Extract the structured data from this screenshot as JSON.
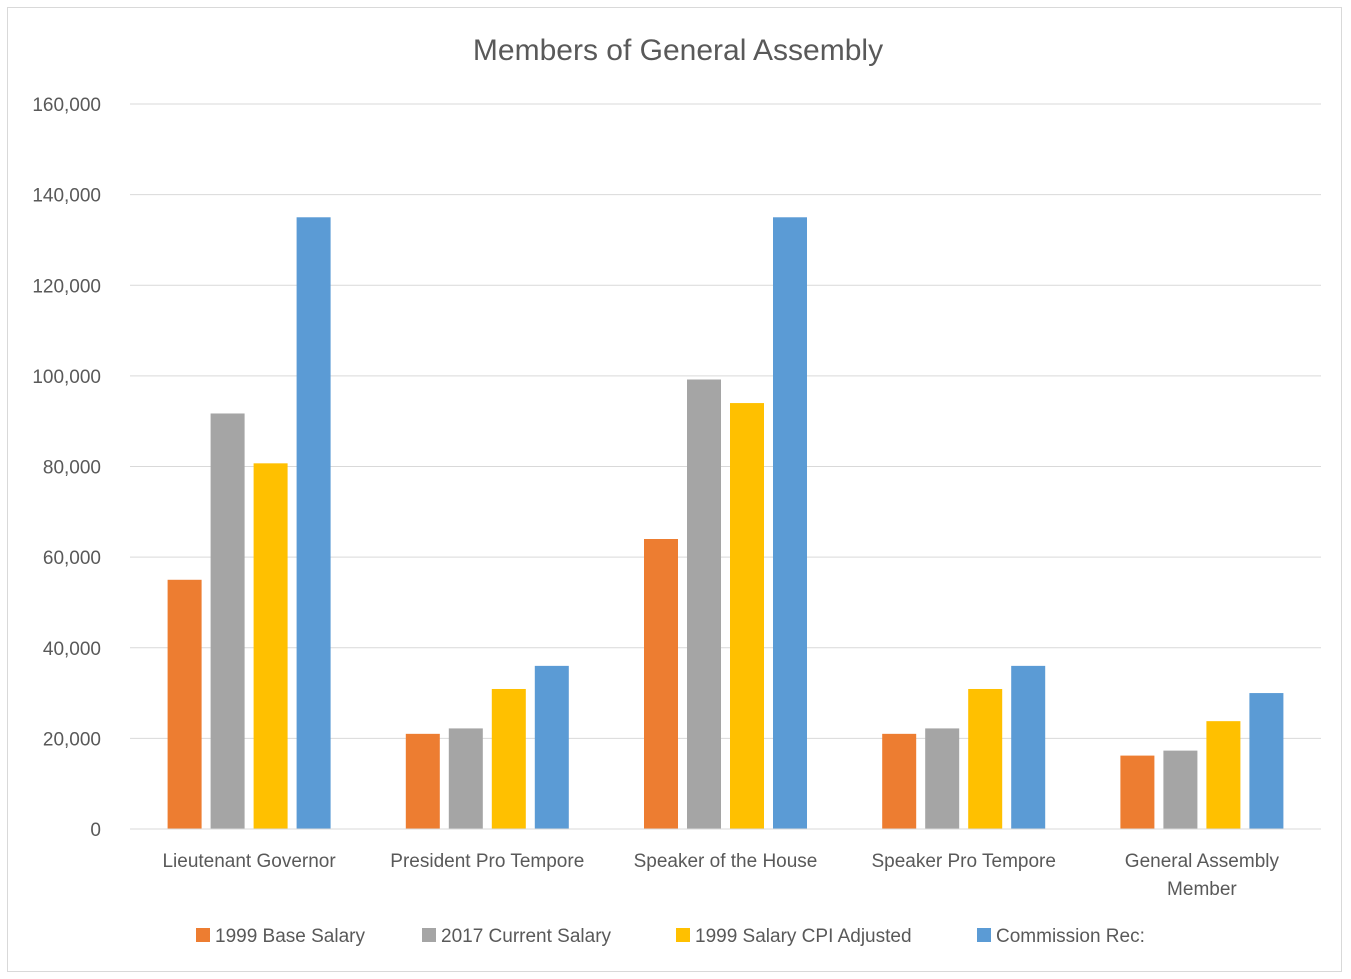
{
  "chart_data": {
    "type": "bar",
    "title": "Members of General Assembly",
    "xlabel": "",
    "ylabel": "",
    "ylim": [
      0,
      160000
    ],
    "yticks": [
      0,
      20000,
      40000,
      60000,
      80000,
      100000,
      120000,
      140000,
      160000
    ],
    "ytick_labels": [
      "0",
      "20,000",
      "40,000",
      "60,000",
      "80,000",
      "100,000",
      "120,000",
      "140,000",
      "160,000"
    ],
    "grid": true,
    "legend_position": "bottom",
    "categories": [
      [
        "Lieutenant Governor"
      ],
      [
        "President Pro Tempore"
      ],
      [
        "Speaker of the House"
      ],
      [
        "Speaker Pro Tempore"
      ],
      [
        "General Assembly",
        "Member"
      ]
    ],
    "series": [
      {
        "name": "1999 Base Salary",
        "color": "#ed7d31",
        "values": [
          55000,
          21000,
          64000,
          21000,
          16200
        ]
      },
      {
        "name": "2017 Current Salary",
        "color": "#a5a5a5",
        "values": [
          91700,
          22200,
          99200,
          22200,
          17300
        ]
      },
      {
        "name": "1999 Salary CPI Adjusted",
        "color": "#ffc000",
        "values": [
          80700,
          30900,
          94000,
          30900,
          23800
        ]
      },
      {
        "name": "Commission Rec:",
        "color": "#5b9bd5",
        "values": [
          135000,
          36000,
          135000,
          36000,
          30000
        ]
      }
    ]
  }
}
